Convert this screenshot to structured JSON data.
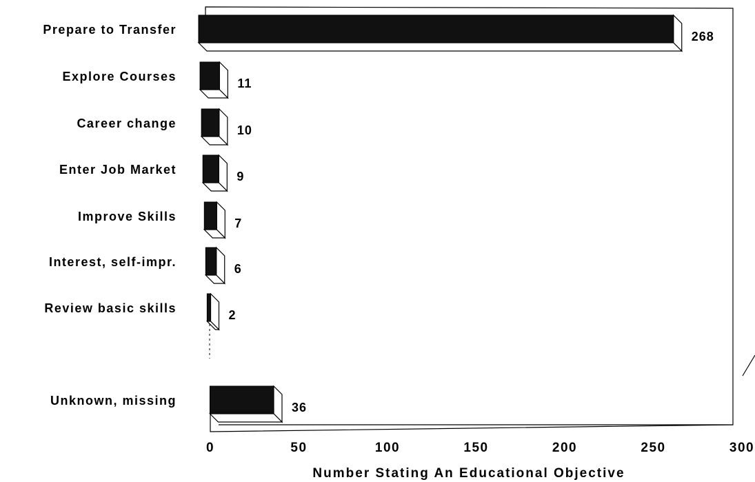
{
  "chart_data": {
    "type": "bar",
    "orientation": "horizontal",
    "categories": [
      "Prepare to Transfer",
      "Explore Courses",
      "Career change",
      "Enter Job Market",
      "Improve Skills",
      "Interest, self-impr.",
      "Review basic skills",
      "",
      "Unknown, missing"
    ],
    "values": [
      268,
      11,
      10,
      9,
      7,
      6,
      2,
      null,
      36
    ],
    "value_labels": [
      "268",
      "11",
      "10",
      "9",
      "7",
      "6",
      "2",
      "",
      "36"
    ],
    "title": "",
    "xlabel": "Number Stating An Educational Objective",
    "ylabel": "",
    "xlim": [
      0,
      300
    ],
    "x_ticks": [
      0,
      50,
      100,
      150,
      200,
      250,
      300
    ],
    "x_tick_labels": [
      "0",
      "50",
      "100",
      "150",
      "200",
      "250",
      "300"
    ],
    "grid": false,
    "legend": "none",
    "style": "3d bars",
    "colors": {
      "bar_face": "#111111",
      "bar_side": "#ffffff",
      "outline": "#000000",
      "background": "#ffffff"
    }
  }
}
